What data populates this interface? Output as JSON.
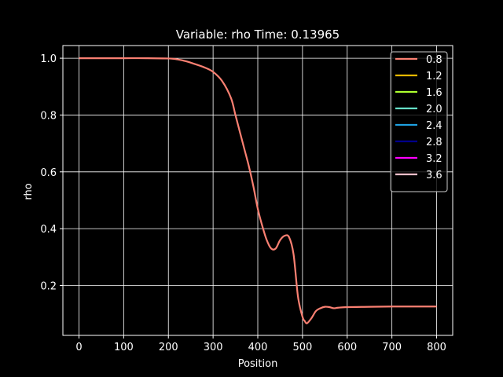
{
  "chart_data": {
    "type": "line",
    "title": "Variable: rho Time: 0.13965",
    "xlabel": "Position",
    "ylabel": "rho",
    "xlim": [
      -36,
      836
    ],
    "ylim": [
      0.0245,
      1.0445
    ],
    "xticks": [
      0,
      100,
      200,
      300,
      400,
      500,
      600,
      700,
      800
    ],
    "yticks": [
      0.2,
      0.4,
      0.6,
      0.8,
      1.0
    ],
    "ytick_labels": [
      "0.2",
      "0.4",
      "0.6",
      "0.8",
      "1.0"
    ],
    "grid": true,
    "legend_position": "top-right",
    "background": "#000000",
    "foreground": "#ffffff",
    "series": [
      {
        "name": "0.8",
        "color": "#fa8072",
        "x": [
          0,
          50,
          100,
          150,
          200,
          220,
          240,
          260,
          280,
          300,
          320,
          340,
          350,
          360,
          370,
          380,
          390,
          400,
          410,
          420,
          430,
          440,
          450,
          460,
          470,
          480,
          490,
          500,
          505,
          510,
          520,
          530,
          540,
          550,
          560,
          570,
          580,
          600,
          650,
          700,
          750,
          800
        ],
        "y": [
          1.0,
          1.0,
          1.0,
          1.0,
          0.999,
          0.996,
          0.989,
          0.979,
          0.968,
          0.952,
          0.92,
          0.86,
          0.8,
          0.74,
          0.68,
          0.62,
          0.55,
          0.47,
          0.41,
          0.36,
          0.33,
          0.33,
          0.36,
          0.375,
          0.37,
          0.31,
          0.16,
          0.09,
          0.075,
          0.067,
          0.085,
          0.11,
          0.12,
          0.125,
          0.124,
          0.12,
          0.122,
          0.124,
          0.125,
          0.126,
          0.126,
          0.126
        ]
      },
      {
        "name": "1.2",
        "color": "#e6b800",
        "x": [],
        "y": []
      },
      {
        "name": "1.6",
        "color": "#adff2f",
        "x": [],
        "y": []
      },
      {
        "name": "2.0",
        "color": "#66e0c8",
        "x": [],
        "y": []
      },
      {
        "name": "2.4",
        "color": "#1ea0e0",
        "x": [],
        "y": []
      },
      {
        "name": "2.8",
        "color": "#00008b",
        "x": [],
        "y": []
      },
      {
        "name": "3.2",
        "color": "#ff00ff",
        "x": [],
        "y": []
      },
      {
        "name": "3.6",
        "color": "#ffc0cb",
        "x": [],
        "y": []
      }
    ]
  }
}
